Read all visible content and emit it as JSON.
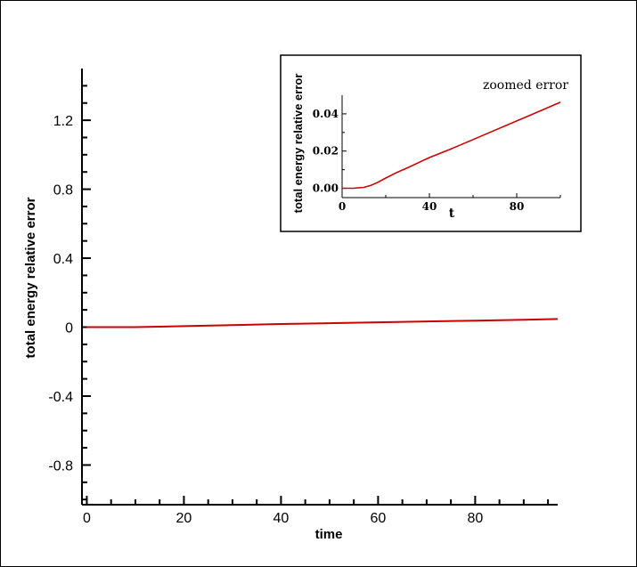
{
  "chart_data": [
    {
      "type": "line",
      "xlabel": "time",
      "ylabel": "total energy relative error",
      "xlim": [
        -1,
        97
      ],
      "ylim": [
        -1.03,
        1.5
      ],
      "x_ticks": [
        0,
        20,
        40,
        60,
        80
      ],
      "x_tick_labels": [
        "0",
        "20",
        "40",
        "60",
        "80"
      ],
      "y_ticks": [
        -0.8,
        -0.4,
        0,
        0.4,
        0.8,
        1.2
      ],
      "y_tick_labels": [
        "-0.8",
        "-0.4",
        "0",
        "0.4",
        "0.8",
        "1.2"
      ],
      "series": [
        {
          "color": "#cc0000",
          "x": [
            0,
            5,
            10,
            15,
            20,
            30,
            40,
            50,
            60,
            70,
            80,
            90,
            97
          ],
          "y": [
            0,
            0,
            0.0003,
            0.0025,
            0.006,
            0.012,
            0.018,
            0.023,
            0.028,
            0.033,
            0.038,
            0.043,
            0.047
          ]
        }
      ]
    },
    {
      "type": "line",
      "title": "zoomed error",
      "xlabel": "t",
      "ylabel": "total energy relative error",
      "xlim": [
        0,
        100
      ],
      "ylim": [
        -0.005,
        0.05
      ],
      "x_ticks": [
        0,
        40,
        80
      ],
      "x_tick_labels": [
        "0",
        "40",
        "80"
      ],
      "y_ticks": [
        0,
        0.02,
        0.04
      ],
      "y_tick_labels": [
        "0.00",
        "0.02",
        "0.04"
      ],
      "series": [
        {
          "color": "#cc0000",
          "x": [
            0,
            5,
            10,
            13,
            16,
            20,
            25,
            30,
            35,
            40,
            50,
            60,
            70,
            80,
            90,
            100
          ],
          "y": [
            0,
            0,
            0.0005,
            0.0015,
            0.003,
            0.0055,
            0.0085,
            0.011,
            0.0138,
            0.0165,
            0.0212,
            0.0262,
            0.0312,
            0.0362,
            0.0412,
            0.0462
          ]
        }
      ]
    }
  ]
}
